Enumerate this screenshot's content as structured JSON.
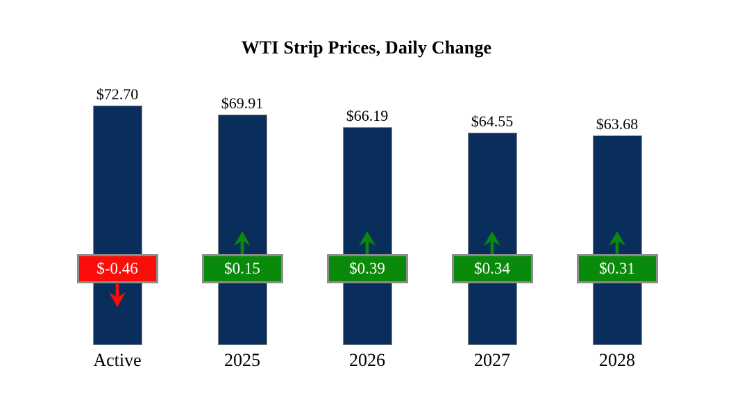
{
  "title": "WTI Strip Prices, Daily Change",
  "colors": {
    "bar_fill": "#0a2e5c",
    "positive": "#0a8a0a",
    "negative": "#fb0d09",
    "box_border": "#8c8c8c",
    "badge_text": "#ffffff",
    "label_text": "#000000",
    "background": "#ffffff"
  },
  "chart_data": {
    "type": "bar",
    "title": "WTI Strip Prices, Daily Change",
    "categories": [
      "Active",
      "2025",
      "2026",
      "2027",
      "2028"
    ],
    "series": [
      {
        "name": "Strip Price",
        "values": [
          72.7,
          69.91,
          66.19,
          64.55,
          63.68
        ],
        "labels": [
          "$72.70",
          "$69.91",
          "$66.19",
          "$64.55",
          "$63.68"
        ]
      },
      {
        "name": "Daily Change",
        "values": [
          -0.46,
          0.15,
          0.39,
          0.34,
          0.31
        ],
        "labels": [
          "$-0.46",
          "$0.15",
          "$0.39",
          "$0.34",
          "$0.31"
        ]
      }
    ],
    "ylim": [
      0,
      72.7
    ],
    "grid": false,
    "legend": "none",
    "xlabel": "",
    "ylabel": ""
  }
}
